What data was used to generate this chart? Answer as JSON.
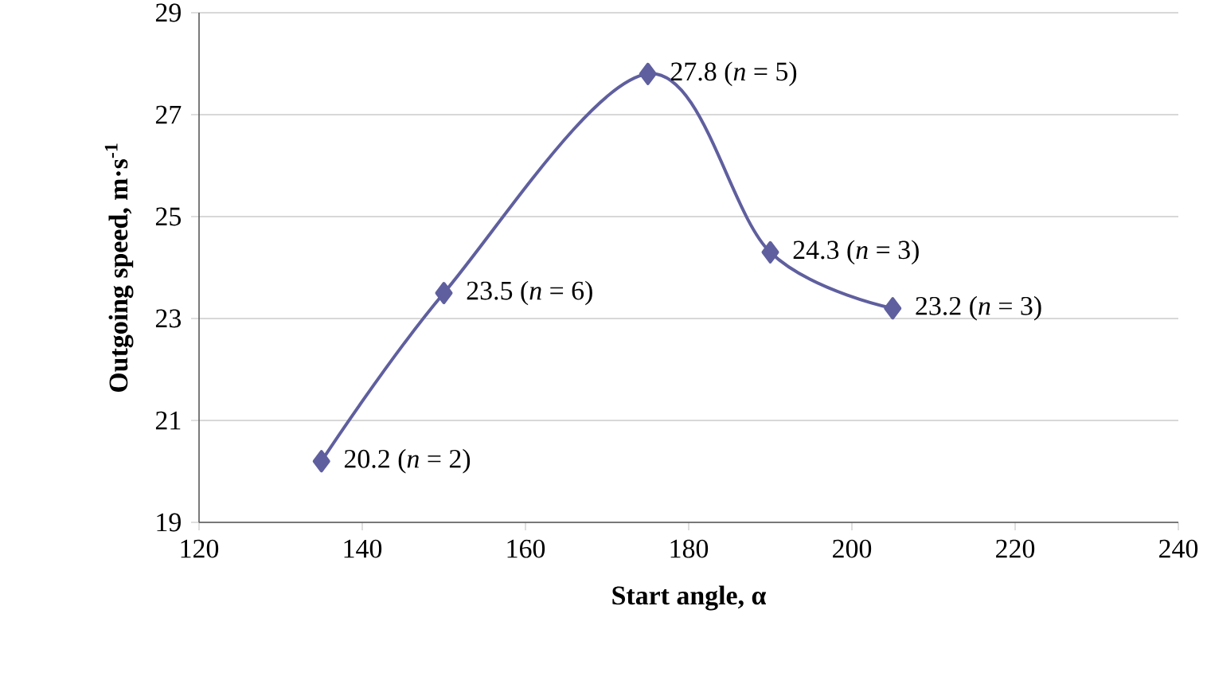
{
  "chart_data": {
    "type": "line",
    "xlabel": "Start angle, α",
    "ylabel": "Outgoing speed, m·s$^{-1}$",
    "x": [
      135,
      150,
      175,
      190,
      205
    ],
    "values": [
      20.2,
      23.5,
      27.8,
      24.3,
      23.2
    ],
    "value_labels": [
      "20.2 (*n* = 2)",
      "23.5 (*n* = 6)",
      "27.8 (*n* = 5)",
      "24.3 (*n* = 3)",
      "23.2 (*n* = 3)"
    ],
    "color": "#5f5f9f",
    "marker": "diamond",
    "line_style": "solid",
    "grid": "y",
    "xlim": [
      120,
      240
    ],
    "xticks": [
      120,
      140,
      160,
      180,
      200,
      220,
      240
    ],
    "ylim": [
      19,
      29
    ],
    "yticks": [
      19,
      21,
      23,
      25,
      27,
      29
    ]
  }
}
